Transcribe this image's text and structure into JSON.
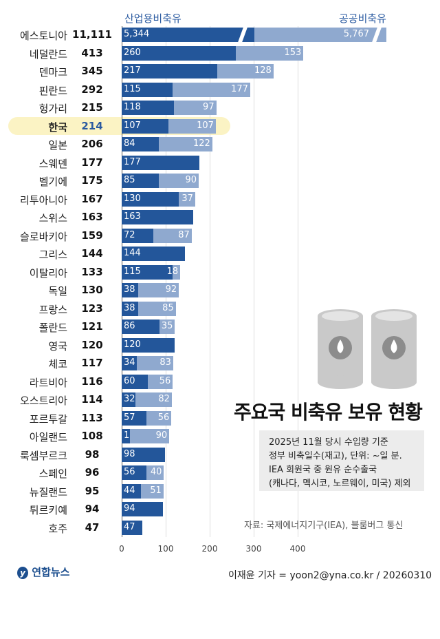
{
  "chart_data": {
    "type": "bar",
    "title": "주요국 비축유 보유 현황",
    "legend": [
      "산업용비축유",
      "공공비축유"
    ],
    "colors": {
      "industrial": "#23569a",
      "public": "#8fa9cf",
      "highlight": "#fbf3c4"
    },
    "xticks": [
      "0",
      "100",
      "200",
      "300",
      "400"
    ],
    "xlim": [
      0,
      450
    ],
    "highlight": "한국",
    "rows": [
      {
        "country": "에스토니아",
        "total": "11,111",
        "industrial": 5344,
        "public": 5767,
        "ind_label": "5,344",
        "pub_label": "5,767",
        "broken": true
      },
      {
        "country": "네덜란드",
        "total": "413",
        "industrial": 260,
        "public": 153
      },
      {
        "country": "덴마크",
        "total": "345",
        "industrial": 217,
        "public": 128
      },
      {
        "country": "핀란드",
        "total": "292",
        "industrial": 115,
        "public": 177
      },
      {
        "country": "헝가리",
        "total": "215",
        "industrial": 118,
        "public": 97
      },
      {
        "country": "한국",
        "total": "214",
        "industrial": 107,
        "public": 107
      },
      {
        "country": "일본",
        "total": "206",
        "industrial": 84,
        "public": 122
      },
      {
        "country": "스웨덴",
        "total": "177",
        "industrial": 177,
        "public": 0
      },
      {
        "country": "벨기에",
        "total": "175",
        "industrial": 85,
        "public": 90
      },
      {
        "country": "리투아니아",
        "total": "167",
        "industrial": 130,
        "public": 37
      },
      {
        "country": "스위스",
        "total": "163",
        "industrial": 163,
        "public": 0
      },
      {
        "country": "슬로바키아",
        "total": "159",
        "industrial": 72,
        "public": 87
      },
      {
        "country": "그리스",
        "total": "144",
        "industrial": 144,
        "public": 0
      },
      {
        "country": "이탈리아",
        "total": "133",
        "industrial": 115,
        "public": 18
      },
      {
        "country": "독일",
        "total": "130",
        "industrial": 38,
        "public": 92
      },
      {
        "country": "프랑스",
        "total": "123",
        "industrial": 38,
        "public": 85
      },
      {
        "country": "폴란드",
        "total": "121",
        "industrial": 86,
        "public": 35
      },
      {
        "country": "영국",
        "total": "120",
        "industrial": 120,
        "public": 0
      },
      {
        "country": "체코",
        "total": "117",
        "industrial": 34,
        "public": 83
      },
      {
        "country": "라트비아",
        "total": "116",
        "industrial": 60,
        "public": 56
      },
      {
        "country": "오스트리아",
        "total": "114",
        "industrial": 32,
        "public": 82
      },
      {
        "country": "포르투갈",
        "total": "113",
        "industrial": 57,
        "public": 56
      },
      {
        "country": "아일랜드",
        "total": "108",
        "industrial": 18,
        "public": 90
      },
      {
        "country": "룩셈부르크",
        "total": "98",
        "industrial": 98,
        "public": 0
      },
      {
        "country": "스페인",
        "total": "96",
        "industrial": 56,
        "public": 40
      },
      {
        "country": "뉴질랜드",
        "total": "95",
        "industrial": 44,
        "public": 51
      },
      {
        "country": "튀르키예",
        "total": "94",
        "industrial": 94,
        "public": 0
      },
      {
        "country": "호주",
        "total": "47",
        "industrial": 47,
        "public": 0
      }
    ]
  },
  "note": [
    "2025년 11월 당시 수입량 기준",
    "정부 비축일수(재고), 단위: ~일 분.",
    "IEA 회원국 중 원유 순수출국",
    "(캐나다, 멕시코, 노르웨이, 미국) 제외"
  ],
  "source": "자료: 국제에너지기구(IEA), 블룸버그 통신",
  "byline": "이재윤 기자 = yoon2@yna.co.kr / 20260310",
  "logo": "연합뉴스"
}
